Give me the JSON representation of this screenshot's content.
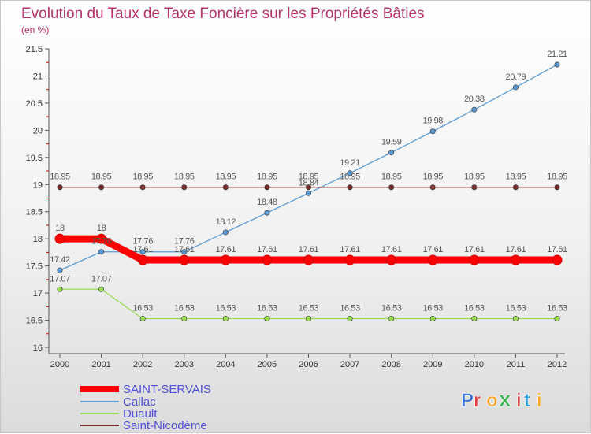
{
  "chart_data": {
    "type": "line",
    "title": "Evolution du Taux de Taxe Foncière sur les Propriétés Bâties",
    "subtitle": "(en %)",
    "xlabel": "",
    "ylabel": "",
    "x": [
      "2000",
      "2001",
      "2002",
      "2003",
      "2004",
      "2005",
      "2006",
      "2007",
      "2008",
      "2009",
      "2010",
      "2011",
      "2012"
    ],
    "ylim": [
      16,
      21.5
    ],
    "yticks": [
      "16",
      "16.5",
      "17",
      "17.5",
      "18",
      "18.5",
      "19",
      "19.5",
      "20",
      "20.5",
      "21",
      "21.5"
    ],
    "grid": false,
    "legend_position": "bottom-left",
    "series": [
      {
        "name": "SAINT-SERVAIS",
        "color": "#ff0000",
        "values": [
          18,
          18,
          17.61,
          17.61,
          17.61,
          17.61,
          17.61,
          17.61,
          17.61,
          17.61,
          17.61,
          17.61,
          17.61
        ],
        "labels": [
          "18",
          "18",
          "17.61",
          "17.61",
          "17.61",
          "17.61",
          "17.61",
          "17.61",
          "17.61",
          "17.61",
          "17.61",
          "17.61",
          "17.61"
        ]
      },
      {
        "name": "Callac",
        "color": "#5b9bd5",
        "values": [
          17.42,
          17.76,
          17.76,
          17.76,
          18.12,
          18.48,
          18.84,
          19.21,
          19.59,
          19.98,
          20.38,
          20.79,
          21.21
        ],
        "labels": [
          "17.42",
          "17.76",
          "17.76",
          "17.76",
          "18.12",
          "18.48",
          "18.84",
          "19.21",
          "19.59",
          "19.98",
          "20.38",
          "20.79",
          "21.21"
        ]
      },
      {
        "name": "Duault",
        "color": "#99dd55",
        "values": [
          17.07,
          17.07,
          16.53,
          16.53,
          16.53,
          16.53,
          16.53,
          16.53,
          16.53,
          16.53,
          16.53,
          16.53,
          16.53
        ],
        "labels": [
          "17.07",
          "17.07",
          "16.53",
          "16.53",
          "16.53",
          "16.53",
          "16.53",
          "16.53",
          "16.53",
          "16.53",
          "16.53",
          "16.53",
          "16.53"
        ]
      },
      {
        "name": "Saint-Nicodème",
        "color": "#7b2d2d",
        "values": [
          18.95,
          18.95,
          18.95,
          18.95,
          18.95,
          18.95,
          18.95,
          18.95,
          18.95,
          18.95,
          18.95,
          18.95,
          18.95
        ],
        "labels": [
          "18.95",
          "18.95",
          "18.95",
          "18.95",
          "18.95",
          "18.95",
          "18.95",
          "18.95",
          "18.95",
          "18.95",
          "18.95",
          "18.95",
          "18.95"
        ]
      }
    ]
  },
  "logo": {
    "text": "Proxiti"
  }
}
